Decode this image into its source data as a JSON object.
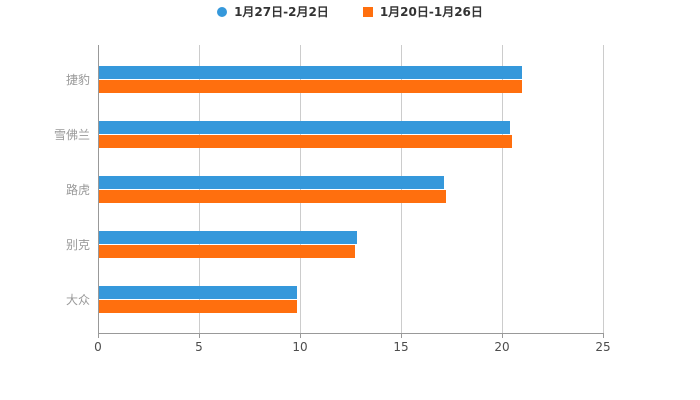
{
  "legend": {
    "items": [
      {
        "label": "1月27日-2月2日",
        "marker": "circle",
        "color": "#3598DB"
      },
      {
        "label": "1月20日-1月26日",
        "marker": "square",
        "color": "#FF6F0E"
      }
    ]
  },
  "chart_data": {
    "type": "bar",
    "orientation": "horizontal",
    "title": "",
    "xlabel": "",
    "ylabel": "",
    "categories": [
      "捷豹",
      "雪佛兰",
      "路虎",
      "别克",
      "大众"
    ],
    "series": [
      {
        "name": "1月27日-2月2日",
        "color": "#3598DB",
        "marker": "circle",
        "values": [
          21.0,
          20.4,
          17.1,
          12.8,
          9.8
        ]
      },
      {
        "name": "1月20日-1月26日",
        "color": "#FF6F0E",
        "marker": "square",
        "values": [
          21.0,
          20.5,
          17.2,
          12.7,
          9.8
        ]
      }
    ],
    "xlim": [
      0,
      25
    ],
    "x_ticks": [
      0,
      5,
      10,
      15,
      20,
      25
    ],
    "grid": true,
    "legend_position": "top",
    "colors": {
      "gridline": "#cccccc",
      "axis": "#999999",
      "category_label": "#999999",
      "tick_label": "#4d4d4d",
      "legend_text": "#333333",
      "background": "#ffffff"
    }
  }
}
